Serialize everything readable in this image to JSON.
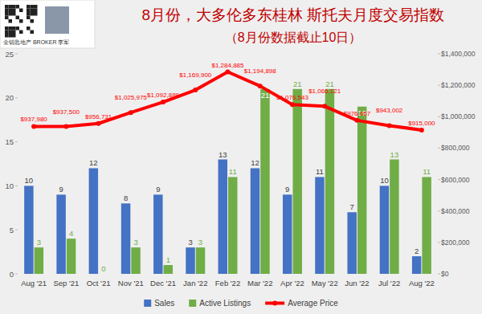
{
  "chart_data": {
    "type": "bar",
    "title": "8月份，大多伦多东桂林 斯托夫月度交易指数",
    "subtitle": "（8月份数据截止10日）",
    "annotations": [
      "金钥匙地产 BROKER 李军"
    ],
    "categories": [
      "Aug '21",
      "Sep '21",
      "Oct '21",
      "Nov '21",
      "Dec '21",
      "Jan '22",
      "Feb '22",
      "Mar '22",
      "Apr '22",
      "May '22",
      "Jun '22",
      "Jul '22",
      "Aug '22"
    ],
    "series": [
      {
        "name": "Sales",
        "type": "bar",
        "color": "#4472c4",
        "values": [
          10,
          9,
          12,
          8,
          9,
          3,
          13,
          12,
          9,
          11,
          7,
          10,
          2
        ]
      },
      {
        "name": "Active Listings",
        "type": "bar",
        "color": "#70ad47",
        "values": [
          3,
          4,
          0,
          3,
          1,
          3,
          11,
          21,
          21,
          21,
          19,
          13,
          11
        ]
      },
      {
        "name": "Average Price",
        "type": "line",
        "color": "#ff0000",
        "marker": "circle",
        "axis": "y2",
        "values": [
          937980,
          937500,
          956731,
          1025975,
          1092889,
          1169900,
          1284885,
          1194898,
          1076543,
          1066121,
          976657,
          943002,
          915000
        ],
        "value_labels": [
          "$937,980",
          "$937,500",
          "$956,731",
          "$1,025,975",
          "$1,092,889",
          "$1,169,900",
          "$1,284,885",
          "$1,194,898",
          "$1,076,543",
          "$1,066,121",
          "$976,657",
          "$943,002",
          "$915,000"
        ]
      }
    ],
    "ylim": [
      0,
      25
    ],
    "yticks": [
      0,
      5,
      10,
      15,
      20,
      25
    ],
    "y2lim": [
      0,
      1400000
    ],
    "y2ticks": [
      {
        "value": 0,
        "label": "$0"
      },
      {
        "value": 200000,
        "label": "$200,000"
      },
      {
        "value": 400000,
        "label": "$400,000"
      },
      {
        "value": 600000,
        "label": "$600,000"
      },
      {
        "value": 800000,
        "label": "$800,000"
      },
      {
        "value": 1000000,
        "label": "$1,000,000"
      },
      {
        "value": 1200000,
        "label": "$1,200,000"
      },
      {
        "value": 1400000,
        "label": "$1,400,000"
      }
    ],
    "grid": false,
    "legend": "bottom",
    "data_labels": true
  }
}
